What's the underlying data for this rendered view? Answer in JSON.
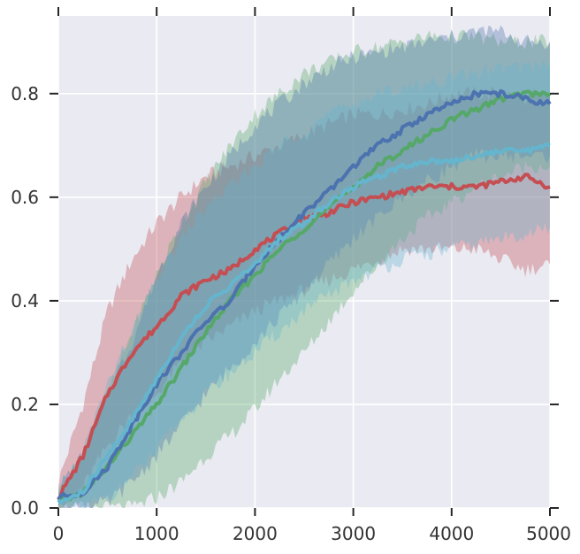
{
  "chart_data": {
    "type": "line",
    "title": "",
    "xlabel": "",
    "ylabel": "",
    "xlim": [
      0,
      5000
    ],
    "ylim": [
      0,
      0.95
    ],
    "grid": true,
    "legend": "none",
    "xticks": [
      0,
      1000,
      2000,
      3000,
      4000,
      5000
    ],
    "xtick_labels": [
      "0",
      "1000",
      "2000",
      "3000",
      "4000",
      "5000"
    ],
    "yticks": [
      0.0,
      0.2,
      0.4,
      0.6,
      0.8
    ],
    "ytick_labels": [
      "0.0",
      "0.2",
      "0.4",
      "0.6",
      "0.8"
    ],
    "x": [
      0,
      250,
      500,
      750,
      1000,
      1250,
      1500,
      1750,
      2000,
      2250,
      2500,
      2750,
      3000,
      3250,
      3500,
      3750,
      4000,
      4250,
      4500,
      4750,
      5000
    ],
    "series": [
      {
        "color": "#c44e52",
        "values": [
          0.02,
          0.1,
          0.22,
          0.3,
          0.35,
          0.41,
          0.44,
          0.46,
          0.5,
          0.53,
          0.56,
          0.57,
          0.59,
          0.6,
          0.61,
          0.62,
          0.62,
          0.62,
          0.63,
          0.64,
          0.62
        ],
        "lower": [
          0.0,
          0.04,
          0.12,
          0.18,
          0.22,
          0.28,
          0.32,
          0.35,
          0.38,
          0.4,
          0.42,
          0.44,
          0.46,
          0.48,
          0.5,
          0.5,
          0.5,
          0.5,
          0.48,
          0.46,
          0.47
        ],
        "upper": [
          0.05,
          0.2,
          0.38,
          0.48,
          0.55,
          0.6,
          0.64,
          0.66,
          0.68,
          0.7,
          0.72,
          0.74,
          0.76,
          0.76,
          0.77,
          0.78,
          0.8,
          0.8,
          0.8,
          0.79,
          0.8
        ]
      },
      {
        "color": "#55a868",
        "values": [
          0.01,
          0.03,
          0.08,
          0.14,
          0.2,
          0.27,
          0.34,
          0.4,
          0.45,
          0.5,
          0.54,
          0.58,
          0.62,
          0.66,
          0.69,
          0.72,
          0.75,
          0.77,
          0.79,
          0.8,
          0.8
        ],
        "lower": [
          0.0,
          0.0,
          0.0,
          0.0,
          0.02,
          0.05,
          0.1,
          0.14,
          0.19,
          0.25,
          0.3,
          0.36,
          0.42,
          0.47,
          0.52,
          0.56,
          0.59,
          0.62,
          0.64,
          0.66,
          0.66
        ],
        "upper": [
          0.03,
          0.1,
          0.22,
          0.34,
          0.45,
          0.55,
          0.63,
          0.7,
          0.76,
          0.8,
          0.84,
          0.86,
          0.88,
          0.89,
          0.9,
          0.91,
          0.91,
          0.91,
          0.9,
          0.9,
          0.9
        ]
      },
      {
        "color": "#4c72b0",
        "values": [
          0.02,
          0.03,
          0.08,
          0.16,
          0.24,
          0.3,
          0.36,
          0.4,
          0.47,
          0.52,
          0.57,
          0.61,
          0.66,
          0.7,
          0.73,
          0.76,
          0.78,
          0.8,
          0.8,
          0.79,
          0.78
        ],
        "lower": [
          0.0,
          0.0,
          0.01,
          0.05,
          0.1,
          0.16,
          0.22,
          0.27,
          0.32,
          0.37,
          0.42,
          0.47,
          0.52,
          0.56,
          0.6,
          0.63,
          0.66,
          0.68,
          0.68,
          0.68,
          0.68
        ],
        "upper": [
          0.04,
          0.1,
          0.22,
          0.32,
          0.45,
          0.55,
          0.62,
          0.68,
          0.74,
          0.78,
          0.82,
          0.85,
          0.87,
          0.88,
          0.89,
          0.9,
          0.91,
          0.92,
          0.92,
          0.9,
          0.9
        ]
      },
      {
        "color": "#64b5cd",
        "values": [
          0.01,
          0.03,
          0.1,
          0.17,
          0.25,
          0.33,
          0.39,
          0.43,
          0.47,
          0.52,
          0.55,
          0.59,
          0.62,
          0.64,
          0.66,
          0.67,
          0.67,
          0.68,
          0.69,
          0.69,
          0.7
        ],
        "lower": [
          0.0,
          0.0,
          0.02,
          0.06,
          0.11,
          0.17,
          0.22,
          0.26,
          0.3,
          0.34,
          0.38,
          0.41,
          0.44,
          0.46,
          0.48,
          0.49,
          0.5,
          0.51,
          0.52,
          0.53,
          0.54
        ],
        "upper": [
          0.03,
          0.11,
          0.24,
          0.34,
          0.44,
          0.52,
          0.58,
          0.62,
          0.66,
          0.7,
          0.73,
          0.76,
          0.78,
          0.8,
          0.81,
          0.82,
          0.83,
          0.84,
          0.85,
          0.85,
          0.86
        ]
      }
    ]
  }
}
